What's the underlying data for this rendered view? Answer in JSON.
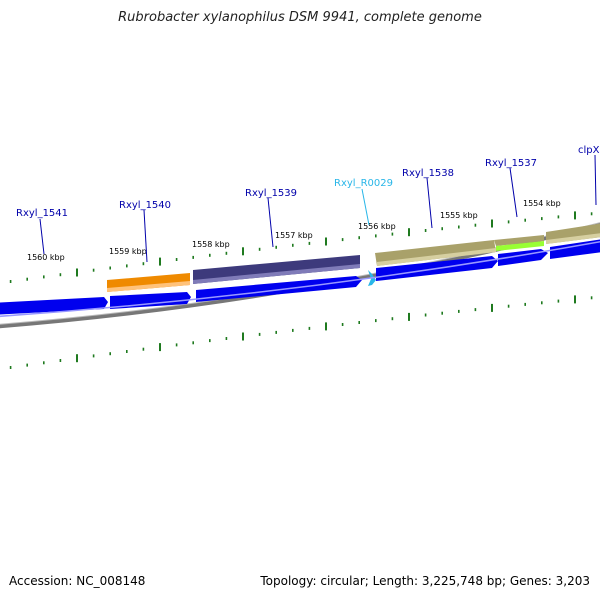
{
  "title": "Rubrobacter xylanophilus DSM 9941, complete genome",
  "footer": {
    "accession": "Accession: NC_008148",
    "summary": "Topology: circular; Length: 3,225,748 bp; Genes: 3,203"
  },
  "colors": {
    "cds_forward": "#0000ee",
    "backbone": "#777777",
    "tick": "#1f7a1f",
    "label_link": "#0000aa",
    "label_rna": "#29b6e8",
    "feature_orange": "#ef8a00",
    "feature_purple": "#3d3a7c",
    "feature_khaki": "#a9a16a",
    "feature_lime": "#99ff33"
  },
  "tick_labels": [
    "1560 kbp",
    "1559 kbp",
    "1558 kbp",
    "1557 kbp",
    "1556 kbp",
    "1555 kbp",
    "1554 kbp"
  ],
  "gene_labels": [
    {
      "text": "Rxyl_1541",
      "kind": "cds"
    },
    {
      "text": "Rxyl_1540",
      "kind": "cds"
    },
    {
      "text": "Rxyl_1539",
      "kind": "cds"
    },
    {
      "text": "Rxyl_R0029",
      "kind": "rna"
    },
    {
      "text": "Rxyl_1538",
      "kind": "cds"
    },
    {
      "text": "Rxyl_1537",
      "kind": "cds"
    },
    {
      "text": "clpX",
      "kind": "cds"
    }
  ],
  "feature_colors": [
    "orange",
    "purple",
    "khaki",
    "lime",
    "khaki"
  ]
}
